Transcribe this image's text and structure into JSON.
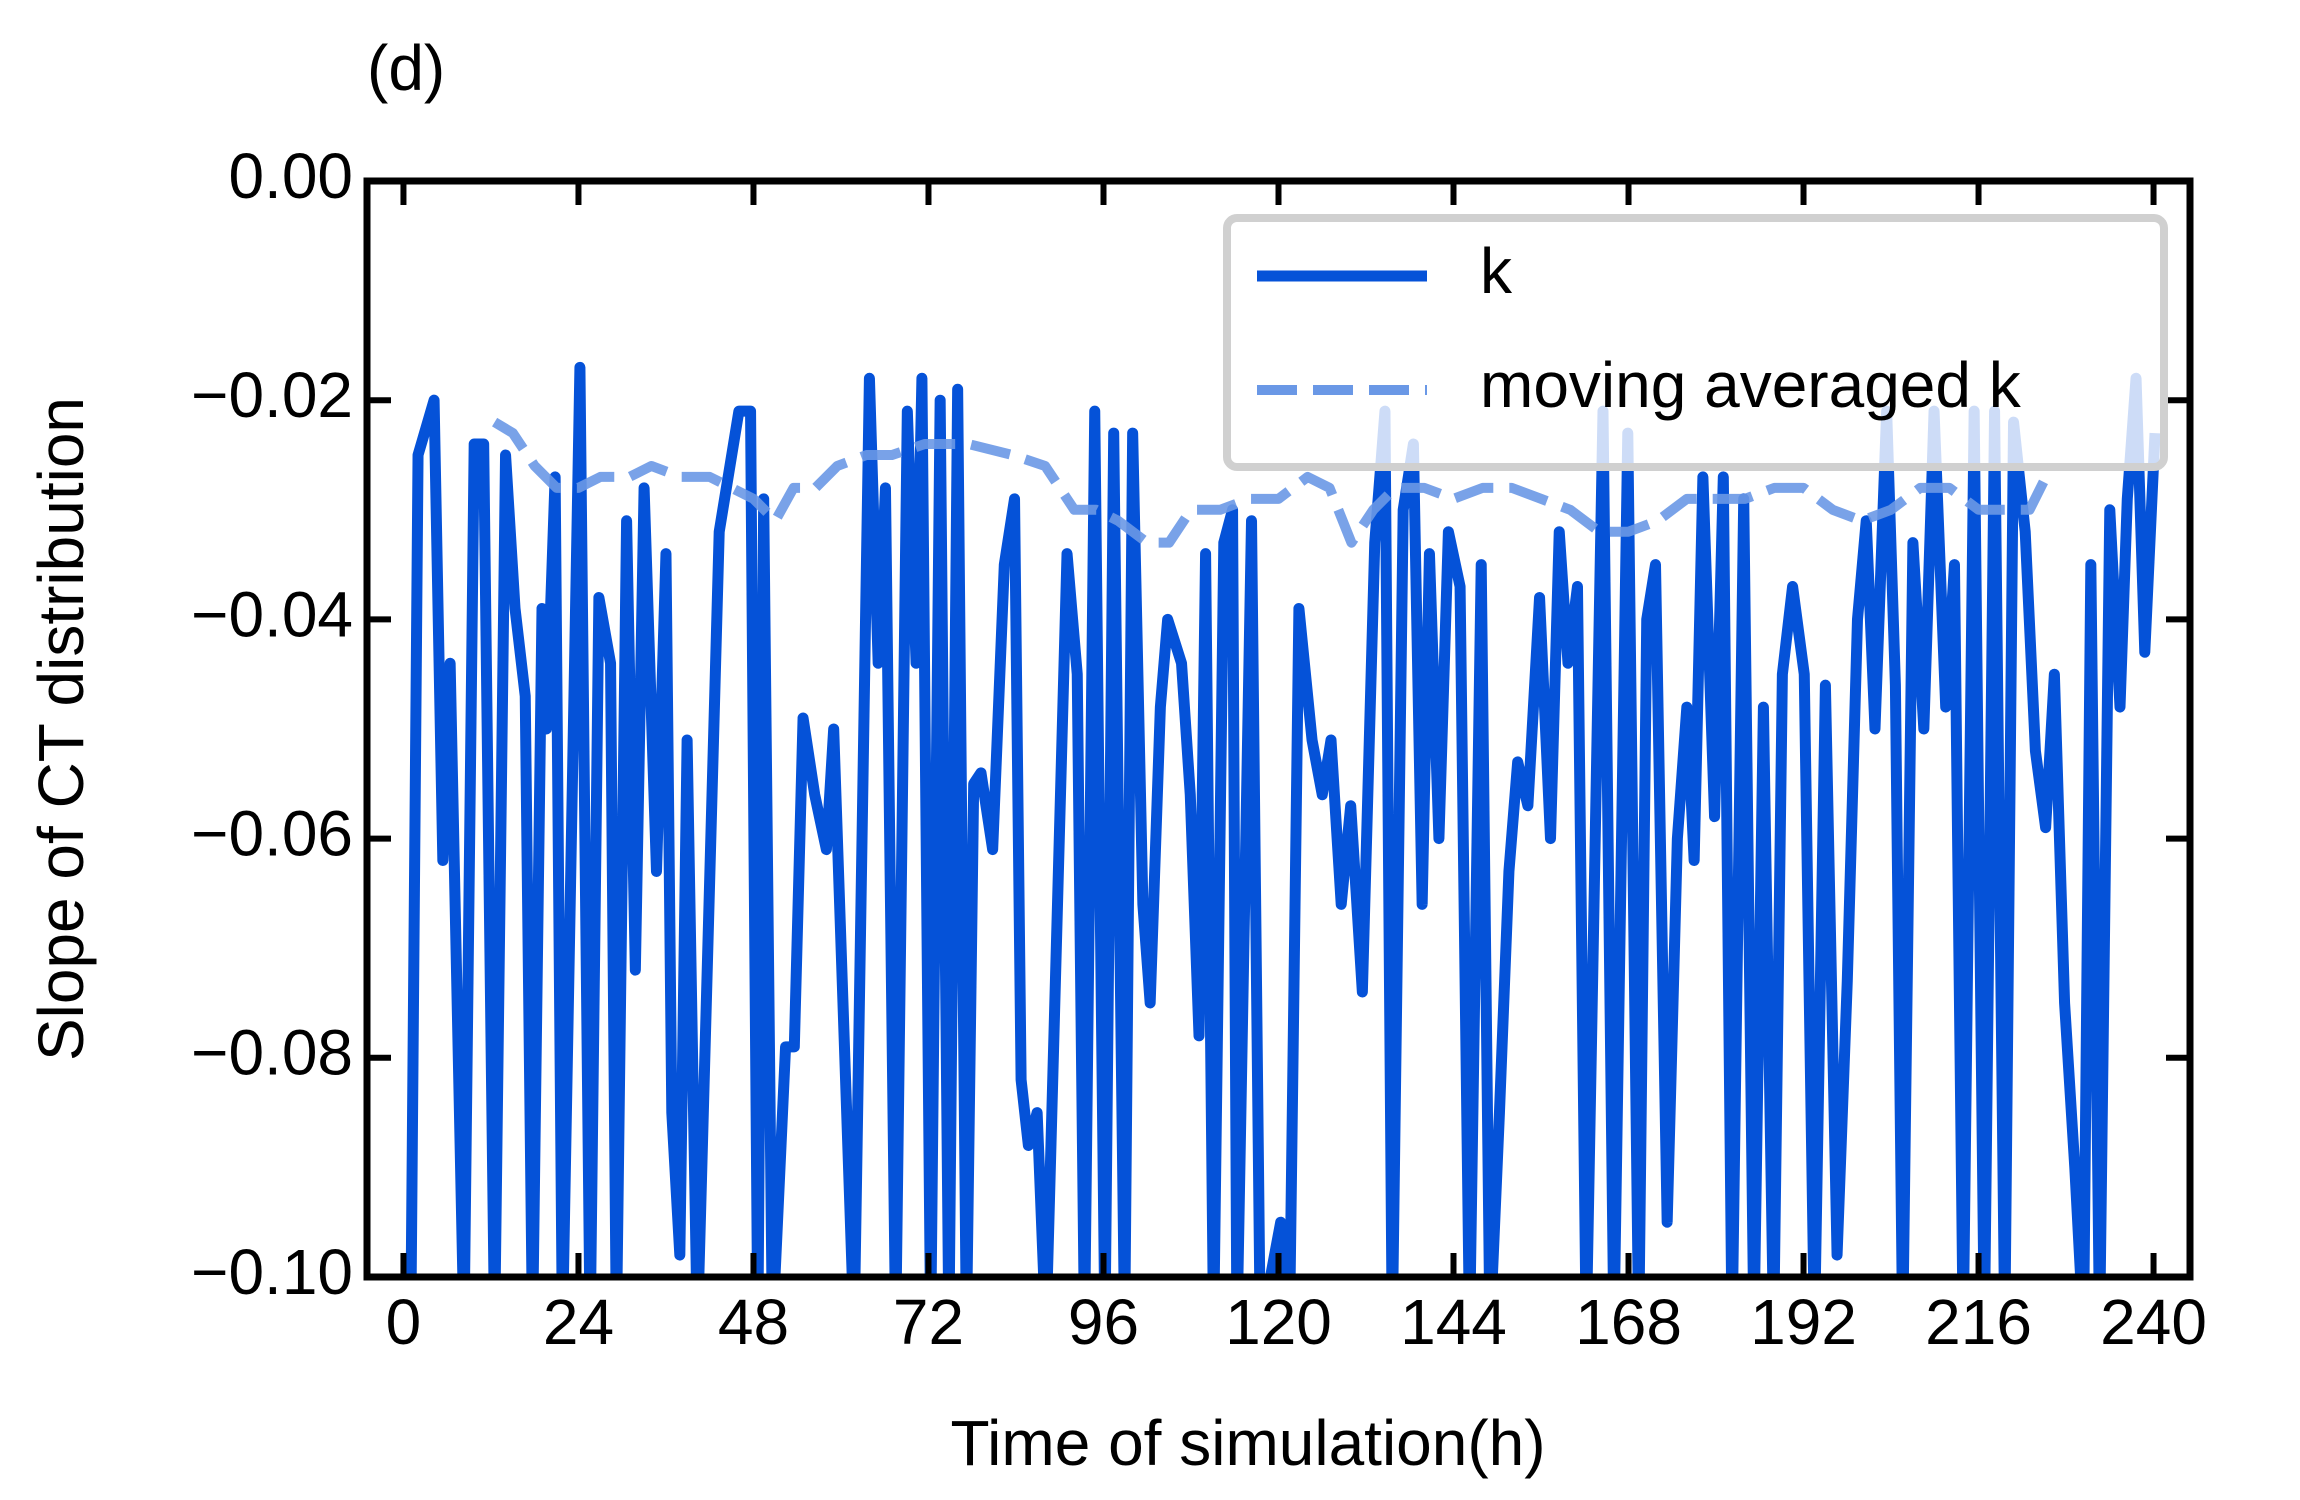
{
  "chart_data": {
    "type": "line",
    "title": "(d)",
    "x_label": "Time of simulation(h)",
    "y_label": "Slope of CT distribution",
    "xlim": [
      -5,
      245
    ],
    "ylim": [
      -0.1,
      0
    ],
    "xticks": [
      0,
      24,
      48,
      72,
      96,
      120,
      144,
      168,
      192,
      216,
      240
    ],
    "yticks": [
      {
        "value": 0,
        "label": "0.00"
      },
      {
        "value": -0.02,
        "label": "−0.02"
      },
      {
        "value": -0.04,
        "label": "−0.04"
      },
      {
        "value": -0.06,
        "label": "−0.06"
      },
      {
        "value": -0.08,
        "label": "−0.08"
      },
      {
        "value": -0.1,
        "label": "−0.10"
      }
    ],
    "legend": "upper right",
    "series": [
      {
        "name": "k",
        "color": "#0552d8",
        "style": "solid",
        "x": [
          1,
          2,
          4.2,
          5.4,
          6.4,
          8.3,
          9.7,
          11,
          12.5,
          14,
          15.3,
          16.7,
          17.7,
          19,
          19.6,
          20.8,
          21.8,
          24.2,
          25.6,
          26.8,
          28.4,
          29.2,
          30.6,
          31.8,
          33,
          34.7,
          36,
          36.8,
          37.9,
          38.9,
          40.3,
          43.3,
          46,
          47.6,
          48.6,
          49.4,
          50.6,
          52.4,
          53.6,
          54.8,
          56.4,
          58,
          59,
          61.8,
          63.9,
          65.1,
          66.1,
          67.5,
          69.1,
          70.3,
          71.1,
          72.3,
          73.6,
          74.8,
          76,
          77.2,
          78.2,
          79.2,
          80.8,
          82.4,
          83.8,
          84.7,
          85.7,
          86.9,
          88.1,
          91,
          92.4,
          93.4,
          94.8,
          96.2,
          97.4,
          98.9,
          100,
          101.4,
          102.4,
          103.8,
          104.8,
          106.7,
          107.9,
          109.1,
          110,
          111.1,
          112.5,
          113.7,
          114.3,
          116.3,
          117.5,
          120.3,
          121.5,
          122.8,
          124.6,
          126,
          127.2,
          128.6,
          129.9,
          131.5,
          133.2,
          134.6,
          135.6,
          137.1,
          138.5,
          139.7,
          140.7,
          142,
          143.3,
          144.9,
          146.2,
          147.8,
          149,
          150.3,
          151.6,
          152.8,
          154.2,
          155.8,
          157.3,
          158.5,
          159.7,
          161,
          162.2,
          164.5,
          166,
          167.9,
          169.4,
          170.5,
          171.7,
          173.3,
          174.7,
          176,
          177,
          178.2,
          179.8,
          181,
          182.2,
          183.8,
          185.2,
          186.5,
          187.9,
          189.1,
          190.5,
          192.1,
          193.5,
          195,
          196.6,
          198,
          199.4,
          200.6,
          201.8,
          203.4,
          204.6,
          205.6,
          207,
          208.5,
          209.9,
          211.5,
          212.7,
          213.9,
          215.4,
          216.8,
          218.2,
          219.6,
          220.8,
          222.4,
          223.8,
          225.2,
          226.4,
          227.8,
          229.2,
          230.4,
          231.4,
          232.6,
          234,
          235.4,
          236.4,
          237.6,
          238.8,
          240.2
        ],
        "values": [
          -0.105,
          -0.025,
          -0.02,
          -0.062,
          -0.044,
          -0.105,
          -0.024,
          -0.024,
          -0.105,
          -0.025,
          -0.039,
          -0.047,
          -0.105,
          -0.039,
          -0.05,
          -0.027,
          -0.105,
          -0.017,
          -0.105,
          -0.038,
          -0.044,
          -0.105,
          -0.031,
          -0.072,
          -0.028,
          -0.063,
          -0.034,
          -0.085,
          -0.098,
          -0.051,
          -0.105,
          -0.032,
          -0.021,
          -0.021,
          -0.105,
          -0.029,
          -0.105,
          -0.079,
          -0.079,
          -0.049,
          -0.056,
          -0.061,
          -0.05,
          -0.105,
          -0.018,
          -0.044,
          -0.028,
          -0.105,
          -0.021,
          -0.044,
          -0.018,
          -0.105,
          -0.02,
          -0.105,
          -0.019,
          -0.105,
          -0.055,
          -0.054,
          -0.061,
          -0.035,
          -0.029,
          -0.082,
          -0.088,
          -0.085,
          -0.105,
          -0.034,
          -0.045,
          -0.105,
          -0.021,
          -0.105,
          -0.023,
          -0.105,
          -0.023,
          -0.066,
          -0.075,
          -0.048,
          -0.04,
          -0.044,
          -0.056,
          -0.078,
          -0.034,
          -0.105,
          -0.033,
          -0.03,
          -0.105,
          -0.031,
          -0.105,
          -0.095,
          -0.105,
          -0.039,
          -0.051,
          -0.056,
          -0.051,
          -0.066,
          -0.057,
          -0.074,
          -0.033,
          -0.021,
          -0.105,
          -0.03,
          -0.024,
          -0.066,
          -0.034,
          -0.06,
          -0.032,
          -0.037,
          -0.105,
          -0.035,
          -0.105,
          -0.085,
          -0.063,
          -0.053,
          -0.057,
          -0.038,
          -0.06,
          -0.032,
          -0.044,
          -0.037,
          -0.105,
          -0.021,
          -0.105,
          -0.023,
          -0.105,
          -0.04,
          -0.035,
          -0.095,
          -0.06,
          -0.048,
          -0.062,
          -0.027,
          -0.058,
          -0.027,
          -0.105,
          -0.029,
          -0.105,
          -0.048,
          -0.105,
          -0.045,
          -0.037,
          -0.045,
          -0.105,
          -0.046,
          -0.098,
          -0.073,
          -0.04,
          -0.031,
          -0.05,
          -0.021,
          -0.046,
          -0.105,
          -0.033,
          -0.05,
          -0.021,
          -0.048,
          -0.035,
          -0.105,
          -0.021,
          -0.105,
          -0.021,
          -0.105,
          -0.022,
          -0.032,
          -0.052,
          -0.059,
          -0.045,
          -0.075,
          -0.09,
          -0.105,
          -0.035,
          -0.105,
          -0.03,
          -0.048,
          -0.029,
          -0.018,
          -0.043,
          -0.023
        ]
      },
      {
        "name": "moving averaged k",
        "color": "#6a98e6",
        "style": "dashed",
        "x": [
          12.5,
          15,
          18,
          21,
          24,
          27,
          31,
          34,
          38,
          42,
          45,
          48,
          51,
          53.5,
          56.5,
          59.5,
          63.5,
          67,
          71.5,
          77.5,
          83.5,
          88,
          92,
          95,
          98,
          102,
          105,
          108,
          112,
          116,
          120,
          124,
          127,
          130,
          133,
          136,
          140,
          144,
          148,
          152,
          156,
          160,
          164,
          168,
          172,
          176,
          180,
          184,
          188,
          192,
          196,
          200,
          204,
          208,
          212,
          216,
          220,
          223,
          226
        ],
        "values": [
          -0.022,
          -0.023,
          -0.026,
          -0.028,
          -0.028,
          -0.027,
          -0.027,
          -0.026,
          -0.027,
          -0.027,
          -0.028,
          -0.029,
          -0.031,
          -0.028,
          -0.028,
          -0.026,
          -0.025,
          -0.025,
          -0.024,
          -0.024,
          -0.025,
          -0.026,
          -0.03,
          -0.03,
          -0.031,
          -0.033,
          -0.033,
          -0.03,
          -0.03,
          -0.029,
          -0.029,
          -0.027,
          -0.028,
          -0.033,
          -0.03,
          -0.028,
          -0.028,
          -0.029,
          -0.028,
          -0.028,
          -0.029,
          -0.03,
          -0.032,
          -0.032,
          -0.031,
          -0.029,
          -0.029,
          -0.029,
          -0.028,
          -0.028,
          -0.03,
          -0.031,
          -0.03,
          -0.028,
          -0.028,
          -0.03,
          -0.03,
          -0.03,
          -0.026
        ]
      }
    ]
  }
}
